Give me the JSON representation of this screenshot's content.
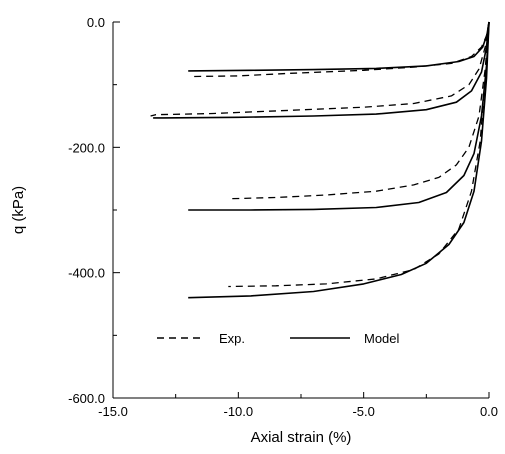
{
  "chart_data": {
    "type": "line",
    "xlabel": "Axial strain (%)",
    "ylabel": "q (kPa)",
    "xlim": [
      -15,
      0
    ],
    "ylim": [
      -600,
      0
    ],
    "x_ticks": [
      -15,
      -10,
      -5,
      0
    ],
    "y_ticks": [
      0,
      -200,
      -400,
      -600
    ],
    "x_tick_labels": [
      "-15.0",
      "-10.0",
      "-5.0",
      "0.0"
    ],
    "y_tick_labels": [
      "0.0",
      "-200.0",
      "-400.0",
      "-600.0"
    ],
    "x_minor_ticks": [
      -12.5,
      -7.5,
      -2.5
    ],
    "y_minor_ticks": [
      -100,
      -300,
      -500
    ],
    "grid": false,
    "legend": {
      "placement": "bottom-left",
      "entries": [
        {
          "label": "Exp.",
          "style": "dashed"
        },
        {
          "label": "Model",
          "style": "solid"
        }
      ]
    },
    "series": [
      {
        "label": "Exp.",
        "style": "dashed",
        "points": [
          [
            0,
            0
          ],
          [
            -0.1,
            -22
          ],
          [
            -0.3,
            -40
          ],
          [
            -0.7,
            -55
          ],
          [
            -1.5,
            -66
          ],
          [
            -3,
            -72
          ],
          [
            -5,
            -77
          ],
          [
            -8,
            -82
          ],
          [
            -10,
            -86
          ],
          [
            -11.8,
            -87
          ]
        ]
      },
      {
        "label": "Exp.",
        "style": "dashed",
        "points": [
          [
            0,
            0
          ],
          [
            -0.15,
            -40
          ],
          [
            -0.4,
            -75
          ],
          [
            -0.8,
            -100
          ],
          [
            -1.5,
            -118
          ],
          [
            -3,
            -130
          ],
          [
            -5,
            -136
          ],
          [
            -8,
            -141
          ],
          [
            -11,
            -146
          ],
          [
            -13.3,
            -148
          ],
          [
            -13.5,
            -150
          ]
        ]
      },
      {
        "label": "Exp.",
        "style": "dashed",
        "points": [
          [
            0,
            0
          ],
          [
            -0.15,
            -75
          ],
          [
            -0.4,
            -150
          ],
          [
            -0.8,
            -200
          ],
          [
            -1.3,
            -228
          ],
          [
            -2,
            -248
          ],
          [
            -3,
            -260
          ],
          [
            -4.5,
            -270
          ],
          [
            -6.5,
            -276
          ],
          [
            -8.5,
            -280
          ],
          [
            -10.3,
            -282
          ]
        ]
      },
      {
        "label": "Exp.",
        "style": "dashed",
        "points": [
          [
            0,
            0
          ],
          [
            -0.15,
            -90
          ],
          [
            -0.35,
            -190
          ],
          [
            -0.7,
            -270
          ],
          [
            -1.2,
            -330
          ],
          [
            -2,
            -370
          ],
          [
            -3,
            -395
          ],
          [
            -4.5,
            -410
          ],
          [
            -6.5,
            -418
          ],
          [
            -8.5,
            -421
          ],
          [
            -10.4,
            -422
          ]
        ]
      },
      {
        "label": "Model",
        "style": "solid",
        "points": [
          [
            0,
            0
          ],
          [
            -0.08,
            -20
          ],
          [
            -0.25,
            -40
          ],
          [
            -0.6,
            -55
          ],
          [
            -1.2,
            -63
          ],
          [
            -2.5,
            -70
          ],
          [
            -4.5,
            -74
          ],
          [
            -7,
            -76
          ],
          [
            -9.5,
            -77
          ],
          [
            -12,
            -78
          ]
        ]
      },
      {
        "label": "Model",
        "style": "solid",
        "points": [
          [
            0,
            0
          ],
          [
            -0.1,
            -40
          ],
          [
            -0.3,
            -80
          ],
          [
            -0.7,
            -110
          ],
          [
            -1.3,
            -128
          ],
          [
            -2.5,
            -140
          ],
          [
            -4.5,
            -147
          ],
          [
            -7,
            -150
          ],
          [
            -10,
            -152
          ],
          [
            -13,
            -153
          ],
          [
            -13.4,
            -153
          ]
        ]
      },
      {
        "label": "Model",
        "style": "solid",
        "points": [
          [
            0,
            0
          ],
          [
            -0.1,
            -70
          ],
          [
            -0.3,
            -150
          ],
          [
            -0.6,
            -210
          ],
          [
            -1,
            -245
          ],
          [
            -1.7,
            -272
          ],
          [
            -2.8,
            -288
          ],
          [
            -4.5,
            -296
          ],
          [
            -7,
            -299
          ],
          [
            -9.5,
            -300
          ],
          [
            -12,
            -300
          ]
        ]
      },
      {
        "label": "Model",
        "style": "solid",
        "points": [
          [
            0,
            0
          ],
          [
            -0.1,
            -90
          ],
          [
            -0.3,
            -190
          ],
          [
            -0.6,
            -270
          ],
          [
            -1,
            -320
          ],
          [
            -1.6,
            -355
          ],
          [
            -2.5,
            -385
          ],
          [
            -3.5,
            -403
          ],
          [
            -5,
            -418
          ],
          [
            -7,
            -430
          ],
          [
            -9.5,
            -437
          ],
          [
            -12,
            -440
          ]
        ]
      }
    ]
  }
}
